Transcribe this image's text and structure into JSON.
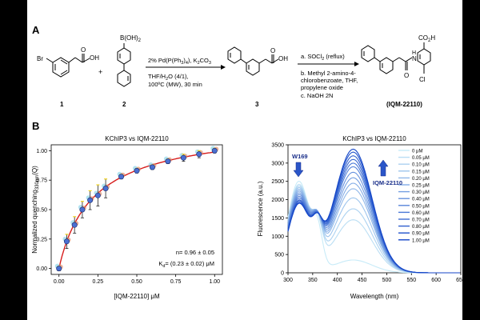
{
  "panel_a": {
    "label": "A",
    "compound1": {
      "br": "Br",
      "acid_o": "O",
      "acid_oh": "OH",
      "number": "1"
    },
    "plus": "+",
    "compound2": {
      "boronic": "B(OH)",
      "boronic_sub": "2",
      "number": "2"
    },
    "step1": {
      "reagents_pre": "2% Pd(P(Ph",
      "reagents_sub1": "3",
      "reagents_mid": ")",
      "reagents_sub2": "4",
      "reagents_post": "), K",
      "reagents_sub3": "2",
      "reagents_post2": "CO",
      "reagents_sub4": "3",
      "solvent": "THF/H",
      "solvent_sub": "2",
      "solvent_post": "O (4/1),",
      "conditions": "100ºC (MW), 30 min"
    },
    "compound3": {
      "acid_o": "O",
      "acid_oh": "OH",
      "number": "3"
    },
    "step2": {
      "line_a": "a. SOCl",
      "line_a_sub": "2",
      "line_a_post": " (reflux)",
      "line_b1": "b. Methyl 2-amino-4-",
      "line_b2": "chlorobenzoate, THF,",
      "line_b3": "propylene oxide",
      "line_c": "c. NaOH 2N"
    },
    "product": {
      "co2h": "CO",
      "co2h_sub": "2",
      "co2h_post": "H",
      "nh": "H",
      "n": "N",
      "o": "O",
      "cl": "Cl",
      "name": "(IQM-22110)"
    }
  },
  "panel_b": {
    "label": "B",
    "chart_data": [
      {
        "type": "scatter",
        "title": "KChIP3 vs IQM-22110",
        "xlabel": "[IQM-22110] μM",
        "ylabel": "Normalized quenching",
        "ylabel_sub": "330nm",
        "ylabel_post": "(Q)",
        "xlim": [
          -0.05,
          1.05
        ],
        "ylim": [
          -0.05,
          1.05
        ],
        "xticks": [
          "0.00",
          "0.25",
          "0.50",
          "0.75",
          "1.00"
        ],
        "yticks": [
          "0.00",
          "0.25",
          "0.50",
          "0.75",
          "1.00"
        ],
        "x": [
          0,
          0.05,
          0.1,
          0.15,
          0.2,
          0.25,
          0.3,
          0.4,
          0.5,
          0.6,
          0.7,
          0.8,
          0.9,
          1.0
        ],
        "y": [
          0.0,
          0.23,
          0.37,
          0.5,
          0.58,
          0.62,
          0.68,
          0.78,
          0.83,
          0.86,
          0.91,
          0.94,
          0.97,
          1.0
        ],
        "err": [
          0.02,
          0.06,
          0.07,
          0.07,
          0.08,
          0.09,
          0.08,
          0.02,
          0.02,
          0.02,
          0.02,
          0.03,
          0.03,
          0.02
        ],
        "n_text": "n= 0.96 ± 0.05",
        "kd_text_k": "K",
        "kd_text_sub": "d",
        "kd_text_rest": "= (0.23 ± 0.02) μM",
        "colors": {
          "point": "#4a6fd1",
          "fit": "#d71d1d",
          "err_top": "#f2d21a",
          "halo": "#e08a6a",
          "halo2": "#7fd0e8"
        }
      },
      {
        "type": "line",
        "title": "KChIP3 vs IQM-22110",
        "xlabel": "Wavelength (nm)",
        "ylabel": "Fluorescence (a.u.)",
        "xlim": [
          300,
          650
        ],
        "ylim": [
          0,
          3500
        ],
        "xticks": [
          "300",
          "350",
          "400",
          "450",
          "500",
          "550",
          "600",
          "650"
        ],
        "yticks": [
          "0",
          "500",
          "1000",
          "1500",
          "2000",
          "2500",
          "3000",
          "3500"
        ],
        "annotations": {
          "w169": "W169",
          "compound": "IQM-22110"
        },
        "series": [
          {
            "name": "0 μM",
            "peak1": 2500,
            "peak2": 350
          },
          {
            "name": "0.05 μM",
            "peak1": 2400,
            "peak2": 1450
          },
          {
            "name": "0.10 μM",
            "peak1": 2350,
            "peak2": 1750
          },
          {
            "name": "0.15 μM",
            "peak1": 2300,
            "peak2": 2050
          },
          {
            "name": "0.20 μM",
            "peak1": 2250,
            "peak2": 2300
          },
          {
            "name": "0.25 μM",
            "peak1": 2200,
            "peak2": 2450
          },
          {
            "name": "0.30 μM",
            "peak1": 2150,
            "peak2": 2600
          },
          {
            "name": "0.40 μM",
            "peak1": 2100,
            "peak2": 2750
          },
          {
            "name": "0.50 μM",
            "peak1": 2050,
            "peak2": 2900
          },
          {
            "name": "0.60 μM",
            "peak1": 2000,
            "peak2": 3000
          },
          {
            "name": "0.70 μM",
            "peak1": 1950,
            "peak2": 3100
          },
          {
            "name": "0.80 μM",
            "peak1": 1920,
            "peak2": 3200
          },
          {
            "name": "0.90 μM",
            "peak1": 1880,
            "peak2": 3300
          },
          {
            "name": "1.00 μM",
            "peak1": 1850,
            "peak2": 3380
          }
        ],
        "legend_position": "right"
      }
    ]
  }
}
